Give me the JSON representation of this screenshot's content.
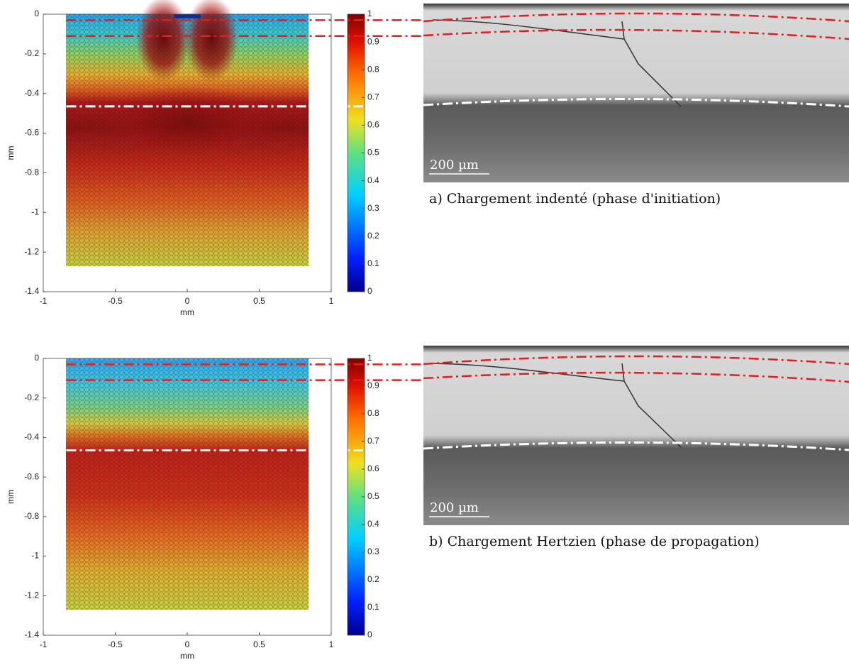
{
  "chart_data": [
    {
      "type": "field",
      "xlabel": "mm",
      "ylabel": "mm",
      "xlim": [
        -1,
        1
      ],
      "ylim": [
        -1.4,
        0
      ],
      "xticks": [
        -1,
        -0.5,
        0,
        0.5,
        1
      ],
      "yticks": [
        0,
        -0.2,
        -0.4,
        -0.6,
        -0.8,
        -1,
        -1.2,
        -1.4
      ],
      "clim": [
        0,
        1
      ],
      "cticks": [
        0,
        0.1,
        0.2,
        0.3,
        0.4,
        0.5,
        0.6,
        0.7,
        0.8,
        0.9,
        1
      ],
      "lines": [
        {
          "y": -0.03,
          "color": "#e02020"
        },
        {
          "y": -0.11,
          "color": "#e02020"
        },
        {
          "y": -0.465,
          "color": "#ffffff"
        }
      ],
      "scalebar": "200 µm",
      "caption": "a) Chargement indenté (phase d'initiation)"
    },
    {
      "type": "field",
      "xlabel": "mm",
      "ylabel": "mm",
      "xlim": [
        -1,
        1
      ],
      "ylim": [
        -1.4,
        0
      ],
      "xticks": [
        -1,
        -0.5,
        0,
        0.5,
        1
      ],
      "yticks": [
        0,
        -0.2,
        -0.4,
        -0.6,
        -0.8,
        -1,
        -1.2,
        -1.4
      ],
      "clim": [
        0,
        1
      ],
      "cticks": [
        0,
        0.1,
        0.2,
        0.3,
        0.4,
        0.5,
        0.6,
        0.7,
        0.8,
        0.9,
        1
      ],
      "lines": [
        {
          "y": -0.03,
          "color": "#e02020"
        },
        {
          "y": -0.11,
          "color": "#e02020"
        },
        {
          "y": -0.465,
          "color": "#ffffff"
        }
      ],
      "scalebar": "200 µm",
      "caption": "b) Chargement Hertzien (phase de propagation)"
    }
  ]
}
